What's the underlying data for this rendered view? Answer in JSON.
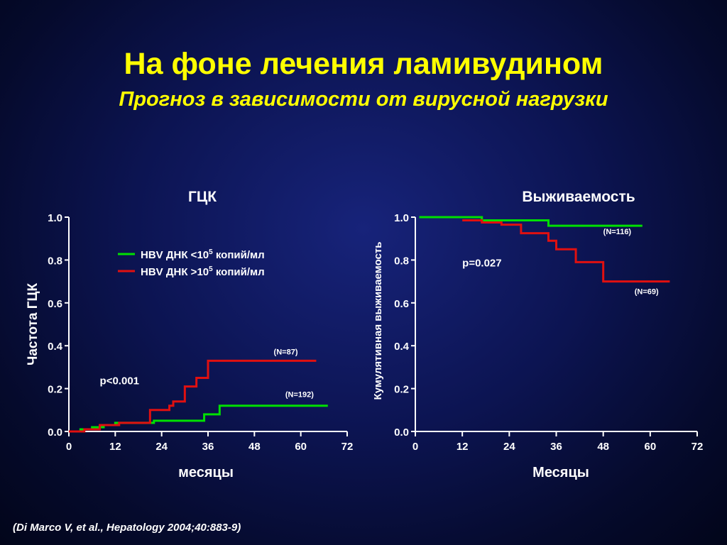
{
  "title": "На фоне лечения ламивудином",
  "subtitle": "Прогноз в зависимости от вирусной нагрузки",
  "citation": "(Di Marco V, et al., Hepatology 2004;40:883-9)",
  "legend": [
    {
      "color": "#00e000",
      "prefix": "HBV ДНК <10",
      "sup": "5",
      "suffix": " копий/мл"
    },
    {
      "color": "#e01010",
      "prefix": "HBV ДНК >10",
      "sup": "5",
      "suffix": " копий/мл"
    }
  ],
  "chart_data": [
    {
      "type": "line",
      "title": "ГЦК",
      "xlabel": "месяцы",
      "ylabel": "Частота ГЦК",
      "xlim": [
        0,
        72
      ],
      "ylim": [
        0,
        1.0
      ],
      "xticks": [
        "0",
        "12",
        "24",
        "36",
        "48",
        "60",
        "72"
      ],
      "yticks": [
        "0.0",
        "0.2",
        "0.4",
        "0.6",
        "0.8",
        "1.0"
      ],
      "annotations": [
        {
          "text": "p<0.001",
          "x": 8,
          "y": 0.22,
          "size": 15
        },
        {
          "text": "(N=87)",
          "x": 53,
          "y": 0.36,
          "size": 11
        },
        {
          "text": "(N=192)",
          "x": 56,
          "y": 0.16,
          "size": 11
        }
      ],
      "series": [
        {
          "color": "#00e000",
          "step": true,
          "x": [
            0,
            3,
            6,
            9,
            12,
            21,
            22,
            29,
            35,
            39,
            67
          ],
          "y": [
            0,
            0.01,
            0.02,
            0.03,
            0.04,
            0.04,
            0.05,
            0.05,
            0.08,
            0.12,
            0.12
          ]
        },
        {
          "color": "#e01010",
          "step": true,
          "x": [
            0,
            4,
            8,
            13,
            21,
            26,
            27,
            30,
            33,
            36,
            64
          ],
          "y": [
            0,
            0.01,
            0.03,
            0.04,
            0.1,
            0.12,
            0.14,
            0.21,
            0.25,
            0.33,
            0.33
          ]
        }
      ]
    },
    {
      "type": "line",
      "title": "Выживаемость",
      "xlabel": "Месяцы",
      "ylabel": "Кумулятивная выживаемость",
      "xlim": [
        0,
        72
      ],
      "ylim": [
        0,
        1.0
      ],
      "xticks": [
        "0",
        "12",
        "24",
        "36",
        "48",
        "60",
        "72"
      ],
      "yticks": [
        "0.0",
        "0.2",
        "0.4",
        "0.6",
        "0.8",
        "1.0"
      ],
      "annotations": [
        {
          "text": "p=0.027",
          "x": 12,
          "y": 0.77,
          "size": 15
        },
        {
          "text": "(N=116)",
          "x": 48,
          "y": 0.92,
          "size": 11
        },
        {
          "text": "(N=69)",
          "x": 56,
          "y": 0.64,
          "size": 11
        }
      ],
      "series": [
        {
          "color": "#00e000",
          "step": true,
          "x": [
            1,
            17,
            34,
            58
          ],
          "y": [
            1.0,
            0.985,
            0.96,
            0.96
          ]
        },
        {
          "color": "#e01010",
          "step": true,
          "x": [
            12,
            17,
            22,
            27,
            34,
            36,
            41,
            48,
            65
          ],
          "y": [
            0.985,
            0.975,
            0.965,
            0.925,
            0.89,
            0.85,
            0.79,
            0.7,
            0.7
          ]
        }
      ]
    }
  ]
}
